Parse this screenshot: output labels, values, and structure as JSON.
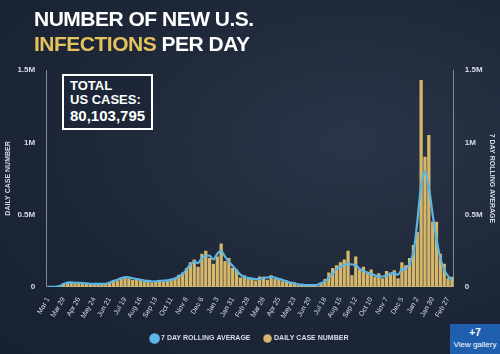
{
  "chart_data": {
    "type": "bar",
    "title": [
      "NUMBER OF NEW U.S.",
      "INFECTIONS PER DAY"
    ],
    "annotations": [
      "TOTAL US CASES:",
      "80,103,795",
      "+7",
      "View gallery"
    ],
    "y_label": "DAILY CASE NUMBER",
    "y2_label": "7 DAY ROLLING AVERAGE",
    "categories": [
      "Mar 1",
      null,
      null,
      null,
      "Mar 29",
      null,
      null,
      null,
      "Apr 26",
      null,
      null,
      null,
      "May 24",
      null,
      null,
      null,
      "Jun 21",
      null,
      null,
      null,
      "Jul 19",
      null,
      null,
      null,
      "Aug 16",
      null,
      null,
      null,
      "Sep 13",
      null,
      null,
      null,
      "Oct 11",
      null,
      null,
      null,
      "Nov 8",
      null,
      null,
      null,
      "Dec 6",
      null,
      null,
      null,
      "Jan 3",
      null,
      null,
      null,
      "Jan 31",
      null,
      null,
      null,
      "Feb 28",
      null,
      null,
      null,
      "Mar 28",
      null,
      null,
      null,
      "Apr 25",
      null,
      null,
      null,
      "May 23",
      null,
      null,
      null,
      "Jun 20",
      null,
      null,
      null,
      "Jul 18",
      null,
      null,
      null,
      "Aug 15",
      null,
      null,
      null,
      "Sep 12",
      null,
      null,
      null,
      "Oct 10",
      null,
      null,
      null,
      "Nov 7",
      null,
      null,
      null,
      "Dec 5",
      null,
      null,
      null,
      "Jan 2",
      null,
      null,
      null,
      "Jan 30",
      null,
      null,
      null,
      "Feb 27",
      null
    ],
    "series": [
      {
        "name": "DAILY CASE NUMBER",
        "type": "bar",
        "color": "#d4b76a",
        "values": [
          0,
          200,
          1800,
          9000,
          24000,
          34000,
          28000,
          26000,
          34000,
          25000,
          20000,
          25000,
          19000,
          22000,
          18000,
          25000,
          33000,
          45000,
          44000,
          66000,
          70000,
          60000,
          50000,
          58000,
          46000,
          38000,
          45000,
          30000,
          41000,
          48000,
          37000,
          50000,
          57000,
          64000,
          85000,
          100000,
          130000,
          170000,
          190000,
          140000,
          230000,
          250000,
          200000,
          160000,
          210000,
          300000,
          180000,
          200000,
          130000,
          120000,
          65000,
          80000,
          55000,
          60000,
          45000,
          72000,
          70000,
          50000,
          80000,
          55000,
          62000,
          40000,
          44000,
          28000,
          32000,
          12000,
          22000,
          9000,
          13000,
          15000,
          5000,
          30000,
          55000,
          100000,
          130000,
          150000,
          170000,
          190000,
          250000,
          80000,
          210000,
          120000,
          140000,
          95000,
          120000,
          70000,
          95000,
          60000,
          110000,
          100000,
          115000,
          60000,
          170000,
          150000,
          200000,
          290000,
          380000,
          1430000,
          900000,
          1050000,
          450000,
          450000,
          230000,
          160000,
          60000,
          70000
        ]
      },
      {
        "name": "7 DAY ROLLING AVERAGE",
        "type": "line",
        "axis": "y2",
        "color": "#5bb6e6",
        "values": [
          0,
          100,
          1000,
          6000,
          20000,
          30000,
          31000,
          29000,
          29000,
          27000,
          24000,
          22000,
          21000,
          21000,
          21000,
          22000,
          30000,
          42000,
          50000,
          60000,
          67000,
          66000,
          60000,
          54000,
          50000,
          43000,
          42000,
          38000,
          38000,
          42000,
          43000,
          45000,
          50000,
          58000,
          73000,
          90000,
          120000,
          155000,
          175000,
          165000,
          200000,
          215000,
          215000,
          190000,
          230000,
          250000,
          210000,
          175000,
          145000,
          115000,
          85000,
          68000,
          63000,
          57000,
          54000,
          55000,
          62000,
          65000,
          70000,
          64000,
          55000,
          48000,
          38000,
          30000,
          24000,
          18000,
          15000,
          12000,
          12000,
          13000,
          15000,
          25000,
          40000,
          65000,
          90000,
          120000,
          140000,
          150000,
          160000,
          155000,
          150000,
          125000,
          110000,
          100000,
          90000,
          80000,
          72000,
          72000,
          78000,
          90000,
          95000,
          85000,
          120000,
          125000,
          160000,
          240000,
          450000,
          700000,
          800000,
          690000,
          500000,
          330000,
          200000,
          120000,
          75000,
          50000
        ]
      }
    ],
    "ylim": [
      0,
      1500000
    ],
    "yticks": [
      0,
      {
        "value": 500000,
        "label": "0.5M"
      },
      {
        "value": 1000000,
        "label": "1M"
      },
      {
        "value": 1500000,
        "label": "1.5M"
      }
    ],
    "y2lim": [
      0,
      1500000
    ],
    "y2ticks": [
      0,
      {
        "value": 500000,
        "label": "0.5M"
      },
      {
        "value": 1000000,
        "label": "1M"
      },
      {
        "value": 1500000,
        "label": "1.5M"
      }
    ],
    "grid": false,
    "legend": "bottom"
  }
}
